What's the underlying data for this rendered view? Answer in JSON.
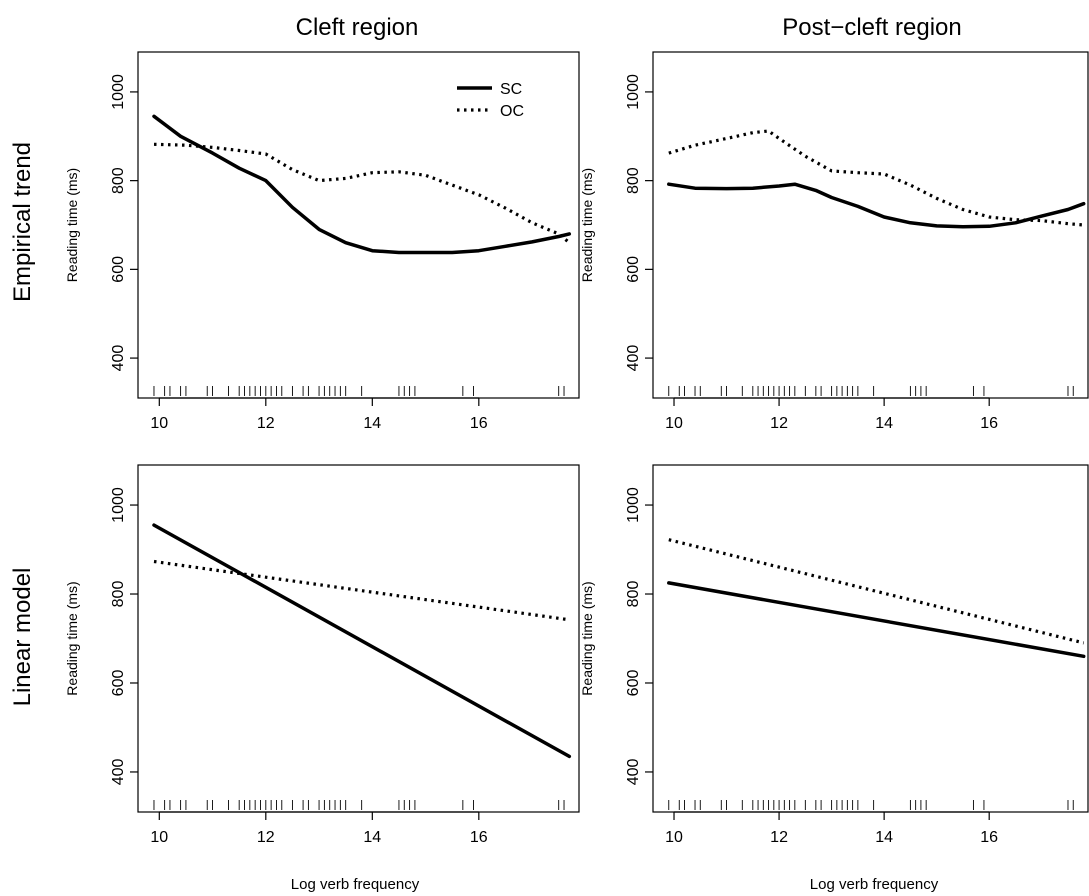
{
  "figure": {
    "col_titles": [
      "Cleft region",
      "Post−cleft region"
    ],
    "row_titles": [
      "Empirical trend",
      "Linear model"
    ],
    "ylabel": "Reading time (ms)",
    "xlabel": "Log verb frequency",
    "legend": [
      {
        "name": "SC",
        "style": "solid"
      },
      {
        "name": "OC",
        "style": "dotted"
      }
    ],
    "x_ticks": [
      "10",
      "12",
      "14",
      "16"
    ],
    "y_ticks": [
      "400",
      "600",
      "800",
      "1000"
    ],
    "colors": {
      "line": "#000000",
      "background": "#ffffff"
    }
  },
  "chart_data": [
    {
      "type": "line",
      "title": "Cleft region",
      "row": "Empirical trend",
      "xlabel": "",
      "ylabel": "Reading time (ms)",
      "xlim": [
        9.6,
        17.9
      ],
      "ylim": [
        310,
        1090
      ],
      "legend_position": "top-right",
      "series": [
        {
          "name": "SC",
          "style": "solid",
          "x": [
            9.9,
            10.4,
            11.0,
            11.5,
            12.0,
            12.5,
            13.0,
            13.5,
            14.0,
            14.5,
            15.0,
            15.5,
            16.0,
            16.5,
            17.0,
            17.5,
            17.7
          ],
          "y": [
            945,
            900,
            862,
            828,
            800,
            740,
            690,
            660,
            642,
            638,
            638,
            638,
            642,
            652,
            662,
            674,
            680
          ]
        },
        {
          "name": "OC",
          "style": "dotted",
          "x": [
            9.9,
            10.5,
            11.0,
            11.5,
            12.0,
            12.5,
            13.0,
            13.5,
            14.0,
            14.5,
            15.0,
            15.5,
            16.0,
            16.5,
            17.0,
            17.5,
            17.7
          ],
          "y": [
            882,
            880,
            875,
            868,
            860,
            825,
            800,
            805,
            818,
            820,
            812,
            790,
            768,
            738,
            705,
            680,
            660
          ]
        }
      ],
      "rug": [
        9.9,
        10.1,
        10.2,
        10.4,
        10.5,
        10.9,
        11.0,
        11.3,
        11.5,
        11.6,
        11.7,
        11.8,
        11.9,
        12.0,
        12.1,
        12.2,
        12.3,
        12.5,
        12.7,
        12.8,
        13.0,
        13.1,
        13.2,
        13.3,
        13.4,
        13.5,
        13.8,
        14.5,
        14.6,
        14.7,
        14.8,
        15.7,
        15.9,
        17.5,
        17.6
      ],
      "grid": false
    },
    {
      "type": "line",
      "title": "Post−cleft region",
      "row": "Empirical trend",
      "xlabel": "",
      "ylabel": "Reading time (ms)",
      "xlim": [
        9.6,
        17.9
      ],
      "ylim": [
        310,
        1090
      ],
      "series": [
        {
          "name": "SC",
          "style": "solid",
          "x": [
            9.9,
            10.4,
            11.0,
            11.5,
            12.0,
            12.3,
            12.7,
            13.0,
            13.5,
            14.0,
            14.5,
            15.0,
            15.5,
            16.0,
            16.5,
            17.0,
            17.5,
            17.8
          ],
          "y": [
            792,
            783,
            782,
            783,
            788,
            792,
            778,
            762,
            742,
            718,
            705,
            698,
            696,
            697,
            705,
            720,
            735,
            748
          ]
        },
        {
          "name": "OC",
          "style": "dotted",
          "x": [
            9.9,
            10.4,
            11.0,
            11.5,
            11.8,
            12.0,
            12.5,
            13.0,
            13.5,
            14.0,
            14.5,
            15.0,
            15.5,
            16.0,
            16.5,
            17.0,
            17.5,
            17.8
          ],
          "y": [
            862,
            880,
            895,
            908,
            912,
            895,
            855,
            822,
            818,
            815,
            790,
            760,
            735,
            718,
            712,
            710,
            703,
            700
          ]
        }
      ],
      "rug": [
        9.9,
        10.1,
        10.2,
        10.4,
        10.5,
        10.9,
        11.0,
        11.3,
        11.5,
        11.6,
        11.7,
        11.8,
        11.9,
        12.0,
        12.1,
        12.2,
        12.3,
        12.5,
        12.7,
        12.8,
        13.0,
        13.1,
        13.2,
        13.3,
        13.4,
        13.5,
        13.8,
        14.5,
        14.6,
        14.7,
        14.8,
        15.7,
        15.9,
        17.5,
        17.6
      ],
      "grid": false
    },
    {
      "type": "line",
      "title": "Cleft region",
      "row": "Linear model",
      "xlabel": "Log verb frequency",
      "ylabel": "Reading time (ms)",
      "xlim": [
        9.6,
        17.9
      ],
      "ylim": [
        310,
        1090
      ],
      "series": [
        {
          "name": "SC",
          "style": "solid",
          "x": [
            9.9,
            17.7
          ],
          "y": [
            955,
            435
          ]
        },
        {
          "name": "OC",
          "style": "dotted",
          "x": [
            9.9,
            17.7
          ],
          "y": [
            873,
            742
          ]
        }
      ],
      "rug": [
        9.9,
        10.1,
        10.2,
        10.4,
        10.5,
        10.9,
        11.0,
        11.3,
        11.5,
        11.6,
        11.7,
        11.8,
        11.9,
        12.0,
        12.1,
        12.2,
        12.3,
        12.5,
        12.7,
        12.8,
        13.0,
        13.1,
        13.2,
        13.3,
        13.4,
        13.5,
        13.8,
        14.5,
        14.6,
        14.7,
        14.8,
        15.7,
        15.9,
        17.5,
        17.6
      ],
      "grid": false
    },
    {
      "type": "line",
      "title": "Post−cleft region",
      "row": "Linear model",
      "xlabel": "Log verb frequency",
      "ylabel": "Reading time (ms)",
      "xlim": [
        9.6,
        17.9
      ],
      "ylim": [
        310,
        1090
      ],
      "series": [
        {
          "name": "SC",
          "style": "solid",
          "x": [
            9.9,
            17.8
          ],
          "y": [
            825,
            660
          ]
        },
        {
          "name": "OC",
          "style": "dotted",
          "x": [
            9.9,
            17.8
          ],
          "y": [
            922,
            690
          ]
        }
      ],
      "rug": [
        9.9,
        10.1,
        10.2,
        10.4,
        10.5,
        10.9,
        11.0,
        11.3,
        11.5,
        11.6,
        11.7,
        11.8,
        11.9,
        12.0,
        12.1,
        12.2,
        12.3,
        12.5,
        12.7,
        12.8,
        13.0,
        13.1,
        13.2,
        13.3,
        13.4,
        13.5,
        13.8,
        14.5,
        14.6,
        14.7,
        14.8,
        15.7,
        15.9,
        17.5,
        17.6
      ],
      "grid": false
    }
  ]
}
